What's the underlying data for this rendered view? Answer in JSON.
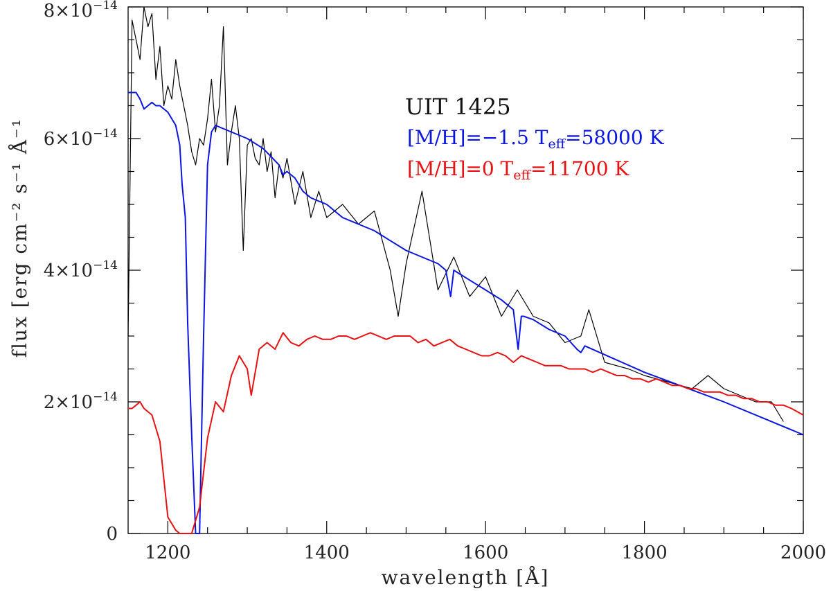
{
  "chart_data": {
    "type": "line",
    "xlabel": "wavelength   [Å]",
    "ylabel": "flux   [erg cm⁻² s⁻¹ Å⁻¹",
    "xlim": [
      1150,
      2000
    ],
    "ylim": [
      0,
      8e-14
    ],
    "x_ticks": [
      {
        "value": 1200,
        "label": "1200"
      },
      {
        "value": 1400,
        "label": "1400"
      },
      {
        "value": 1600,
        "label": "1600"
      },
      {
        "value": 1800,
        "label": "1800"
      },
      {
        "value": 2000,
        "label": "2000"
      }
    ],
    "y_ticks": [
      {
        "value": 0,
        "label": "0",
        "mantissa": "",
        "exponent": ""
      },
      {
        "value": 2e-14,
        "label": "2×10⁻¹⁴",
        "mantissa": "2×10",
        "exponent": "−14"
      },
      {
        "value": 4e-14,
        "label": "4×10⁻¹⁴",
        "mantissa": "4×10",
        "exponent": "−14"
      },
      {
        "value": 6e-14,
        "label": "6×10⁻¹⁴",
        "mantissa": "6×10",
        "exponent": "−14"
      },
      {
        "value": 8e-14,
        "label": "8×10⁻¹⁴",
        "mantissa": "8×10",
        "exponent": "−14"
      }
    ],
    "annotations": {
      "object": "UIT 1425",
      "blue_model": {
        "prefix": "[M/H]=−1.5  T",
        "sub": "eff",
        "suffix": "=58000 K"
      },
      "red_model": {
        "prefix": "[M/H]=0  T",
        "sub": "eff",
        "suffix": "=11700 K"
      }
    },
    "series": [
      {
        "name": "observed UIT 1425",
        "color": "#000000",
        "x": [
          1150,
          1155,
          1160,
          1165,
          1170,
          1175,
          1180,
          1185,
          1190,
          1195,
          1200,
          1205,
          1210,
          1215,
          1220,
          1225,
          1230,
          1235,
          1240,
          1245,
          1250,
          1255,
          1260,
          1265,
          1270,
          1275,
          1280,
          1285,
          1290,
          1295,
          1300,
          1305,
          1310,
          1315,
          1320,
          1325,
          1330,
          1335,
          1340,
          1345,
          1350,
          1360,
          1370,
          1380,
          1390,
          1400,
          1420,
          1440,
          1460,
          1480,
          1490,
          1500,
          1520,
          1540,
          1560,
          1580,
          1600,
          1620,
          1640,
          1660,
          1680,
          1700,
          1720,
          1730,
          1750,
          1780,
          1800,
          1830,
          1860,
          1880,
          1900,
          1920,
          1940,
          1960,
          1975
        ],
        "y": [
          3e-14,
          7.8e-14,
          7.5e-14,
          7.2e-14,
          8e-14,
          7.7e-14,
          7.9e-14,
          6.9e-14,
          7.4e-14,
          6.5e-14,
          6.8e-14,
          6.6e-14,
          7.2e-14,
          6.8e-14,
          6.5e-14,
          6.2e-14,
          5.8e-14,
          5.6e-14,
          6e-14,
          5.9e-14,
          6.3e-14,
          6.9e-14,
          6.1e-14,
          6.5e-14,
          7.7e-14,
          5.6e-14,
          6.1e-14,
          6.5e-14,
          6e-14,
          4.3e-14,
          5.9e-14,
          6e-14,
          5.7e-14,
          5.6e-14,
          6e-14,
          5.5e-14,
          5.8e-14,
          5.1e-14,
          5.6e-14,
          5.4e-14,
          5.7e-14,
          5e-14,
          5.5e-14,
          4.8e-14,
          5.2e-14,
          4.8e-14,
          5e-14,
          4.7e-14,
          4.9e-14,
          4e-14,
          3.3e-14,
          4.1e-14,
          5.2e-14,
          3.7e-14,
          4.2e-14,
          3.6e-14,
          3.9e-14,
          3.3e-14,
          3.7e-14,
          3.3e-14,
          3.2e-14,
          2.9e-14,
          3e-14,
          3.4e-14,
          2.6e-14,
          2.5e-14,
          2.4e-14,
          2.3e-14,
          2.2e-14,
          2.4e-14,
          2.2e-14,
          2.1e-14,
          2e-14,
          2e-14,
          1.7e-14
        ]
      },
      {
        "name": "[M/H]=-1.5 Teff=58000 K",
        "color": "#0a16e0",
        "x": [
          1150,
          1160,
          1165,
          1170,
          1175,
          1180,
          1185,
          1190,
          1200,
          1210,
          1215,
          1218,
          1222,
          1225,
          1230,
          1235,
          1240,
          1245,
          1250,
          1255,
          1260,
          1280,
          1300,
          1320,
          1340,
          1345,
          1350,
          1360,
          1370,
          1380,
          1400,
          1420,
          1440,
          1460,
          1480,
          1500,
          1520,
          1540,
          1550,
          1556,
          1560,
          1580,
          1600,
          1620,
          1635,
          1641,
          1645,
          1648,
          1660,
          1680,
          1700,
          1715,
          1720,
          1725,
          1800,
          1900,
          2000
        ],
        "y": [
          6.7e-14,
          6.7e-14,
          6.6e-14,
          6.45e-14,
          6.5e-14,
          6.55e-14,
          6.5e-14,
          6.5e-14,
          6.4e-14,
          6.2e-14,
          5.9e-14,
          5.3e-14,
          4.8e-14,
          3.2e-14,
          1.5e-14,
          0,
          0,
          3e-14,
          5.6e-14,
          6.1e-14,
          6.2e-14,
          6.1e-14,
          6e-14,
          5.85e-14,
          5.6e-14,
          5.45e-14,
          5.5e-14,
          5.4e-14,
          5.2e-14,
          5.1e-14,
          5e-14,
          4.8e-14,
          4.7e-14,
          4.6e-14,
          4.45e-14,
          4.3e-14,
          4.2e-14,
          4.1e-14,
          4e-14,
          3.6e-14,
          4e-14,
          3.85e-14,
          3.7e-14,
          3.55e-14,
          3.4e-14,
          2.8e-14,
          3.3e-14,
          3.3e-14,
          3.25e-14,
          3.1e-14,
          3e-14,
          2.8e-14,
          2.75e-14,
          2.85e-14,
          2.45e-14,
          2e-14,
          1.5e-14
        ]
      },
      {
        "name": "[M/H]=0 Teff=11700 K",
        "color": "#e81010",
        "x": [
          1150,
          1155,
          1160,
          1165,
          1170,
          1180,
          1190,
          1200,
          1210,
          1215,
          1222,
          1230,
          1240,
          1250,
          1260,
          1270,
          1280,
          1290,
          1300,
          1305,
          1315,
          1325,
          1335,
          1345,
          1355,
          1365,
          1375,
          1385,
          1395,
          1405,
          1415,
          1425,
          1435,
          1445,
          1455,
          1465,
          1475,
          1485,
          1495,
          1505,
          1515,
          1525,
          1535,
          1545,
          1555,
          1565,
          1575,
          1585,
          1595,
          1605,
          1615,
          1625,
          1635,
          1645,
          1655,
          1665,
          1675,
          1685,
          1695,
          1705,
          1715,
          1725,
          1735,
          1745,
          1755,
          1765,
          1775,
          1785,
          1795,
          1805,
          1815,
          1825,
          1835,
          1845,
          1855,
          1865,
          1875,
          1885,
          1895,
          1905,
          1915,
          1925,
          1935,
          1945,
          1955,
          1965,
          1975,
          1985,
          2000
        ],
        "y": [
          1.9e-14,
          1.9e-14,
          1.95e-14,
          2e-14,
          1.9e-14,
          1.8e-14,
          1.4e-14,
          2.5e-15,
          5e-16,
          0,
          0,
          0,
          4e-15,
          1.45e-14,
          2e-14,
          1.85e-14,
          2.4e-14,
          2.7e-14,
          2.5e-14,
          2.1e-14,
          2.8e-14,
          2.9e-14,
          2.8e-14,
          3.05e-14,
          2.9e-14,
          2.85e-14,
          2.95e-14,
          3e-14,
          2.95e-14,
          2.95e-14,
          3e-14,
          3e-14,
          2.95e-14,
          3e-14,
          3.05e-14,
          3e-14,
          2.95e-14,
          3e-14,
          3e-14,
          3e-14,
          2.9e-14,
          2.95e-14,
          2.85e-14,
          2.9e-14,
          2.95e-14,
          2.85e-14,
          2.8e-14,
          2.75e-14,
          2.7e-14,
          2.7e-14,
          2.75e-14,
          2.7e-14,
          2.6e-14,
          2.7e-14,
          2.65e-14,
          2.6e-14,
          2.55e-14,
          2.55e-14,
          2.55e-14,
          2.5e-14,
          2.5e-14,
          2.5e-14,
          2.45e-14,
          2.5e-14,
          2.45e-14,
          2.4e-14,
          2.4e-14,
          2.35e-14,
          2.35e-14,
          2.3e-14,
          2.35e-14,
          2.3e-14,
          2.25e-14,
          2.25e-14,
          2.2e-14,
          2.2e-14,
          2.15e-14,
          2.15e-14,
          2.15e-14,
          2.1e-14,
          2.1e-14,
          2.05e-14,
          2.05e-14,
          2e-14,
          2e-14,
          1.95e-14,
          1.95e-14,
          1.9e-14,
          1.8e-14
        ]
      }
    ]
  }
}
